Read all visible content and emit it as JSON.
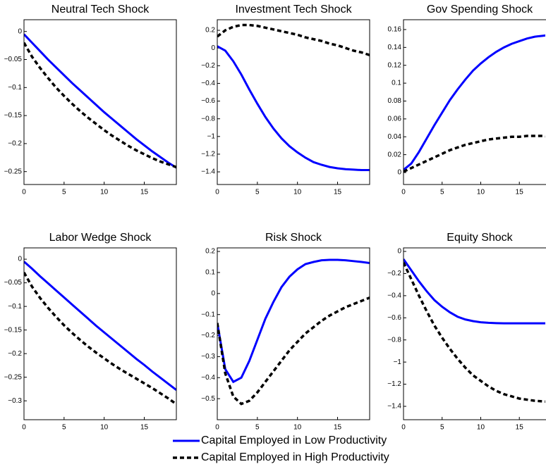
{
  "chart_data": [
    {
      "type": "line",
      "title": "Neutral Tech Shock",
      "x": [
        0,
        1,
        2,
        3,
        4,
        5,
        6,
        7,
        8,
        9,
        10,
        11,
        12,
        13,
        14,
        15,
        16,
        17,
        18,
        19
      ],
      "xlim": [
        0,
        19
      ],
      "xticks": [
        0,
        5,
        10,
        15
      ],
      "ylim": [
        -0.273,
        0.021
      ],
      "yticks": [
        0,
        {
          "value": -0.05,
          "label": "−0.05"
        },
        {
          "value": -0.1,
          "label": "−0.1"
        },
        {
          "value": -0.15,
          "label": "−0.15"
        },
        {
          "value": -0.2,
          "label": "−0.2"
        },
        {
          "value": -0.25,
          "label": "−0.25"
        }
      ],
      "series": [
        {
          "name": "Capital Employed in Low Productivity",
          "color": "#0000ff",
          "linestyle": "solid",
          "values": [
            -0.005,
            -0.02,
            -0.035,
            -0.05,
            -0.064,
            -0.078,
            -0.092,
            -0.105,
            -0.118,
            -0.131,
            -0.144,
            -0.156,
            -0.168,
            -0.18,
            -0.192,
            -0.203,
            -0.214,
            -0.224,
            -0.234,
            -0.243
          ]
        },
        {
          "name": "Capital Employed in High Productivity",
          "color": "#000000",
          "linestyle": "dashed",
          "values": [
            -0.02,
            -0.045,
            -0.065,
            -0.083,
            -0.1,
            -0.115,
            -0.129,
            -0.142,
            -0.154,
            -0.165,
            -0.176,
            -0.186,
            -0.195,
            -0.204,
            -0.212,
            -0.219,
            -0.226,
            -0.232,
            -0.237,
            -0.242
          ]
        }
      ]
    },
    {
      "type": "line",
      "title": "Investment Tech Shock",
      "x": [
        0,
        1,
        2,
        3,
        4,
        5,
        6,
        7,
        8,
        9,
        10,
        11,
        12,
        13,
        14,
        15,
        16,
        17,
        18,
        19
      ],
      "xlim": [
        0,
        19
      ],
      "xticks": [
        0,
        5,
        10,
        15
      ],
      "ylim": [
        -1.543,
        0.32
      ],
      "yticks": [
        0.2,
        0,
        {
          "value": -0.2,
          "label": "−0.2"
        },
        {
          "value": -0.4,
          "label": "−0.4"
        },
        {
          "value": -0.6,
          "label": "−0.6"
        },
        {
          "value": -0.8,
          "label": "−0.8"
        },
        {
          "value": -1,
          "label": "−1"
        },
        {
          "value": -1.2,
          "label": "−1.2"
        },
        {
          "value": -1.4,
          "label": "−1.4"
        }
      ],
      "series": [
        {
          "color": "#0000ff",
          "linestyle": "solid",
          "values": [
            0.02,
            -0.03,
            -0.15,
            -0.3,
            -0.47,
            -0.63,
            -0.78,
            -0.91,
            -1.02,
            -1.11,
            -1.18,
            -1.24,
            -1.29,
            -1.32,
            -1.345,
            -1.36,
            -1.37,
            -1.375,
            -1.38,
            -1.38
          ]
        },
        {
          "color": "#000000",
          "linestyle": "dashed",
          "values": [
            0.13,
            0.2,
            0.24,
            0.26,
            0.26,
            0.25,
            0.23,
            0.21,
            0.19,
            0.17,
            0.15,
            0.12,
            0.1,
            0.08,
            0.05,
            0.03,
            0.0,
            -0.03,
            -0.05,
            -0.08
          ]
        }
      ]
    },
    {
      "type": "line",
      "title": "Gov Spending Shock",
      "x": [
        0,
        1,
        2,
        3,
        4,
        5,
        6,
        7,
        8,
        9,
        10,
        11,
        12,
        13,
        14,
        15,
        16,
        17,
        18,
        19
      ],
      "xlim": [
        0,
        19
      ],
      "xticks": [
        0,
        5,
        10,
        15
      ],
      "ylim": [
        -0.0134,
        0.171
      ],
      "yticks": [
        0,
        0.02,
        0.04,
        0.06,
        0.08,
        0.1,
        0.12,
        0.14,
        0.16
      ],
      "series": [
        {
          "color": "#0000ff",
          "linestyle": "solid",
          "values": [
            0.003,
            0.01,
            0.023,
            0.038,
            0.053,
            0.067,
            0.081,
            0.093,
            0.104,
            0.114,
            0.122,
            0.129,
            0.135,
            0.14,
            0.144,
            0.147,
            0.15,
            0.152,
            0.153,
            0.154
          ]
        },
        {
          "color": "#000000",
          "linestyle": "dashed",
          "values": [
            0.001,
            0.005,
            0.009,
            0.013,
            0.017,
            0.021,
            0.025,
            0.028,
            0.031,
            0.033,
            0.035,
            0.037,
            0.038,
            0.039,
            0.04,
            0.04,
            0.041,
            0.041,
            0.041,
            0.04
          ]
        }
      ]
    },
    {
      "type": "line",
      "title": "Labor Wedge Shock",
      "x": [
        0,
        1,
        2,
        3,
        4,
        5,
        6,
        7,
        8,
        9,
        10,
        11,
        12,
        13,
        14,
        15,
        16,
        17,
        18,
        19
      ],
      "xlim": [
        0,
        19
      ],
      "xticks": [
        0,
        5,
        10,
        15
      ],
      "ylim": [
        -0.34,
        0.024
      ],
      "yticks": [
        0,
        {
          "value": -0.05,
          "label": "−0.05"
        },
        {
          "value": -0.1,
          "label": "−0.1"
        },
        {
          "value": -0.15,
          "label": "−0.15"
        },
        {
          "value": -0.2,
          "label": "−0.2"
        },
        {
          "value": -0.25,
          "label": "−0.25"
        },
        {
          "value": -0.3,
          "label": "−0.3"
        }
      ],
      "series": [
        {
          "color": "#0000ff",
          "linestyle": "solid",
          "values": [
            -0.005,
            -0.02,
            -0.036,
            -0.051,
            -0.066,
            -0.081,
            -0.096,
            -0.111,
            -0.126,
            -0.141,
            -0.155,
            -0.169,
            -0.183,
            -0.197,
            -0.211,
            -0.224,
            -0.238,
            -0.251,
            -0.264,
            -0.277
          ]
        },
        {
          "color": "#000000",
          "linestyle": "dashed",
          "values": [
            -0.028,
            -0.058,
            -0.082,
            -0.103,
            -0.122,
            -0.14,
            -0.156,
            -0.171,
            -0.185,
            -0.198,
            -0.21,
            -0.222,
            -0.233,
            -0.243,
            -0.253,
            -0.263,
            -0.273,
            -0.284,
            -0.295,
            -0.307
          ]
        }
      ]
    },
    {
      "type": "line",
      "title": "Risk Shock",
      "x": [
        0,
        1,
        2,
        3,
        4,
        5,
        6,
        7,
        8,
        9,
        10,
        11,
        12,
        13,
        14,
        15,
        16,
        17,
        18,
        19
      ],
      "xlim": [
        0,
        19
      ],
      "xticks": [
        0,
        5,
        10,
        15
      ],
      "ylim": [
        -0.6,
        0.217
      ],
      "yticks": [
        0.2,
        0.1,
        0,
        {
          "value": -0.1,
          "label": "−0.1"
        },
        {
          "value": -0.2,
          "label": "−0.2"
        },
        {
          "value": -0.3,
          "label": "−0.3"
        },
        {
          "value": -0.4,
          "label": "−0.4"
        },
        {
          "value": -0.5,
          "label": "−0.5"
        }
      ],
      "series": [
        {
          "color": "#0000ff",
          "linestyle": "solid",
          "values": [
            -0.14,
            -0.36,
            -0.42,
            -0.4,
            -0.32,
            -0.22,
            -0.12,
            -0.04,
            0.03,
            0.08,
            0.115,
            0.14,
            0.15,
            0.158,
            0.16,
            0.16,
            0.158,
            0.154,
            0.15,
            0.145
          ]
        },
        {
          "color": "#000000",
          "linestyle": "dashed",
          "values": [
            -0.14,
            -0.38,
            -0.49,
            -0.525,
            -0.51,
            -0.47,
            -0.42,
            -0.37,
            -0.32,
            -0.27,
            -0.23,
            -0.19,
            -0.16,
            -0.13,
            -0.105,
            -0.085,
            -0.065,
            -0.05,
            -0.035,
            -0.02
          ]
        }
      ]
    },
    {
      "type": "line",
      "title": "Equity Shock",
      "x": [
        0,
        1,
        2,
        3,
        4,
        5,
        6,
        7,
        8,
        9,
        10,
        11,
        12,
        13,
        14,
        15,
        16,
        17,
        18,
        19
      ],
      "xlim": [
        0,
        19
      ],
      "xticks": [
        0,
        5,
        10,
        15
      ],
      "ylim": [
        -1.521,
        0.032
      ],
      "yticks": [
        0,
        {
          "value": -0.2,
          "label": "−0.2"
        },
        {
          "value": -0.4,
          "label": "−0.4"
        },
        {
          "value": -0.6,
          "label": "−0.6"
        },
        {
          "value": -0.8,
          "label": "−0.8"
        },
        {
          "value": -1,
          "label": "−1"
        },
        {
          "value": -1.2,
          "label": "−1.2"
        },
        {
          "value": -1.4,
          "label": "−1.4"
        }
      ],
      "series": [
        {
          "color": "#0000ff",
          "linestyle": "solid",
          "values": [
            -0.07,
            -0.17,
            -0.27,
            -0.36,
            -0.44,
            -0.5,
            -0.55,
            -0.59,
            -0.615,
            -0.63,
            -0.64,
            -0.645,
            -0.648,
            -0.65,
            -0.65,
            -0.65,
            -0.65,
            -0.65,
            -0.65,
            -0.65
          ]
        },
        {
          "color": "#000000",
          "linestyle": "dashed",
          "values": [
            -0.1,
            -0.25,
            -0.4,
            -0.54,
            -0.67,
            -0.78,
            -0.88,
            -0.97,
            -1.05,
            -1.12,
            -1.17,
            -1.22,
            -1.26,
            -1.29,
            -1.31,
            -1.33,
            -1.34,
            -1.35,
            -1.355,
            -1.36
          ]
        }
      ]
    }
  ]
}
